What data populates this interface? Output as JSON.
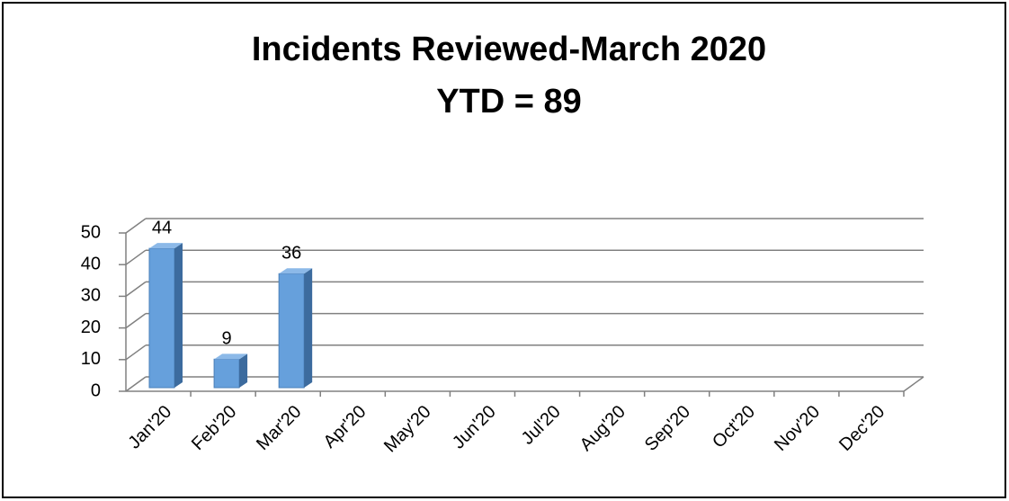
{
  "chart_data": {
    "type": "bar3d",
    "title": "Incidents Reviewed-March 2020",
    "subtitle": "YTD = 89",
    "categories": [
      "Jan'20",
      "Feb'20",
      "Mar'20",
      "Apr'20",
      "May'20",
      "Jun'20",
      "Jul'20",
      "Aug'20",
      "Sep'20",
      "Oct'20",
      "Nov'20",
      "Dec'20"
    ],
    "values": [
      44,
      9,
      36,
      null,
      null,
      null,
      null,
      null,
      null,
      null,
      null,
      null
    ],
    "color": "#66a0dc",
    "ylim": [
      0,
      50
    ],
    "yticks": [
      0,
      10,
      20,
      30,
      40,
      50
    ],
    "grid": true
  }
}
